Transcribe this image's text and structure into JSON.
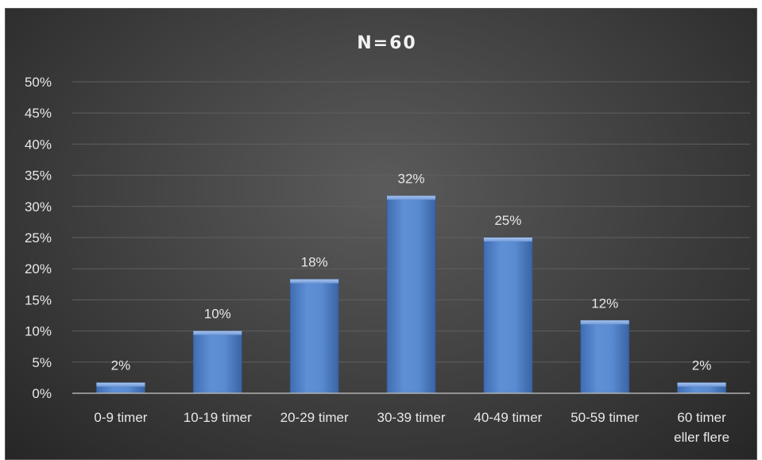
{
  "chart_data": {
    "type": "bar",
    "title": "N=60",
    "xlabel": "",
    "ylabel": "",
    "categories": [
      [
        "0-9 timer"
      ],
      [
        "10-19 timer"
      ],
      [
        "20-29 timer"
      ],
      [
        "30-39 timer"
      ],
      [
        "40-49 timer"
      ],
      [
        "50-59 timer"
      ],
      [
        "60 timer",
        "eller flere"
      ]
    ],
    "values": [
      1.7,
      10,
      18.3,
      31.7,
      25,
      11.7,
      1.7
    ],
    "data_labels": [
      "2%",
      "10%",
      "18%",
      "32%",
      "25%",
      "12%",
      "2%"
    ],
    "ylim": [
      0,
      50
    ],
    "yticks": [
      0,
      5,
      10,
      15,
      20,
      25,
      30,
      35,
      40,
      45,
      50
    ],
    "ytick_labels": [
      "0%",
      "5%",
      "10%",
      "15%",
      "20%",
      "25%",
      "30%",
      "35%",
      "40%",
      "45%",
      "50%"
    ],
    "grid": true,
    "legend": "none",
    "colors": {
      "bar": "#4f81bd",
      "bar_light": "#95b3e1",
      "bar_dark": "#3a66a8",
      "background": "#3e3e3e",
      "text": "#e8e8e8"
    }
  }
}
